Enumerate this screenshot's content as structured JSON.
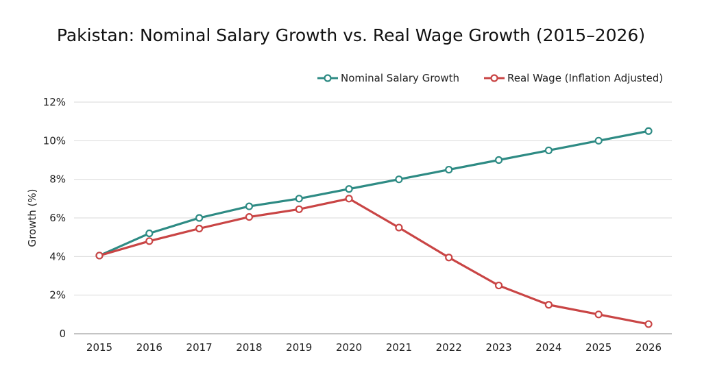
{
  "chart_data": {
    "type": "line",
    "title": "Pakistan: Nominal Salary Growth vs. Real Wage Growth (2015–2026)",
    "xlabel": "",
    "ylabel": "Growth (%)",
    "x": [
      "2015",
      "2016",
      "2017",
      "2018",
      "2019",
      "2020",
      "2021",
      "2022",
      "2023",
      "2024",
      "2025",
      "2026"
    ],
    "ylim": [
      0,
      12
    ],
    "yticks": [
      0,
      2,
      4,
      6,
      8,
      10,
      12
    ],
    "ytick_labels": [
      "0",
      "2%",
      "4%",
      "6%",
      "8%",
      "10%",
      "12%"
    ],
    "grid": "horizontal",
    "legend_position": "top-right",
    "series": [
      {
        "name": "Nominal Salary Growth",
        "color": "#2e8b84",
        "values": [
          4.05,
          5.2,
          6.0,
          6.6,
          7.0,
          7.5,
          8.0,
          8.5,
          9.0,
          9.5,
          10.0,
          10.5
        ]
      },
      {
        "name": "Real Wage (Inflation Adjusted)",
        "color": "#c94545",
        "values": [
          4.05,
          4.8,
          5.45,
          6.05,
          6.45,
          7.0,
          5.5,
          3.95,
          2.5,
          1.5,
          1.0,
          0.5
        ]
      }
    ]
  }
}
